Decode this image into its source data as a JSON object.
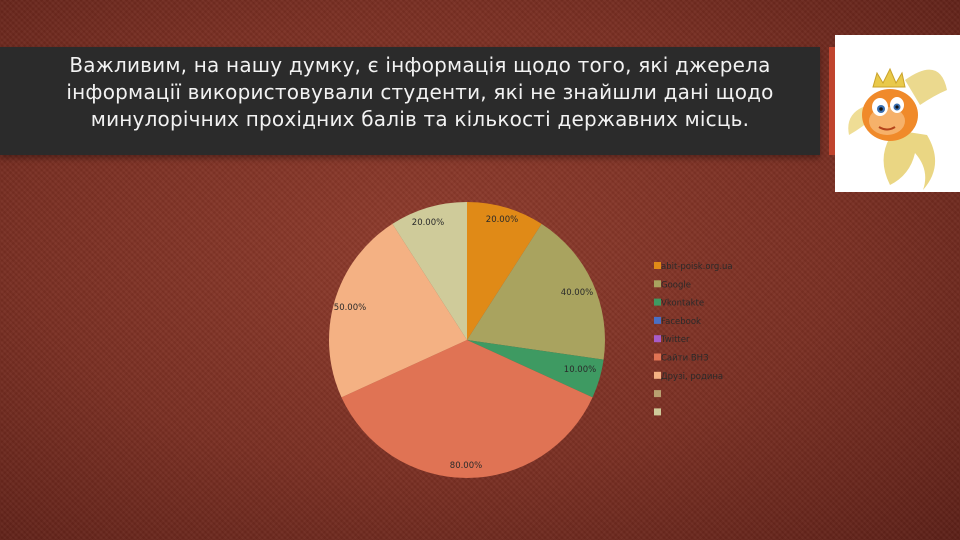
{
  "slide": {
    "title": "Важливим, на нашу думку, є інформація щодо того, які джерела інформації використовували студенти, які не знайшли дані щодо минулорічних прохідних балів та кількості державних місць."
  },
  "image": {
    "icon": "goldfish-with-crown-icon"
  },
  "chart_data": {
    "type": "pie",
    "slices": [
      {
        "name": "abit-poisk.org.ua",
        "value": 20,
        "label": "20.00%",
        "color": "#e08a17"
      },
      {
        "name": "Google",
        "value": 40,
        "label": "40.00%",
        "color": "#a9a35f"
      },
      {
        "name": "Vkontakte",
        "value": 10,
        "label": "10.00%",
        "color": "#3e9a62"
      },
      {
        "name": "Facebook",
        "value": 0,
        "label": "",
        "color": "#4a6fc4"
      },
      {
        "name": "Twitter",
        "value": 0,
        "label": "",
        "color": "#a85cc8"
      },
      {
        "name": "Сайти ВНЗ",
        "value": 80,
        "label": "80.00%",
        "color": "#e07354"
      },
      {
        "name": "Друзі, родина",
        "value": 50,
        "label": "50.00%",
        "color": "#f4b183"
      },
      {
        "name": "",
        "value": 0,
        "label": "",
        "color": "#b9a070"
      },
      {
        "name": "",
        "value": 20,
        "label": "20.00%",
        "color": "#cfcb9a"
      }
    ],
    "legend_position": "right"
  }
}
